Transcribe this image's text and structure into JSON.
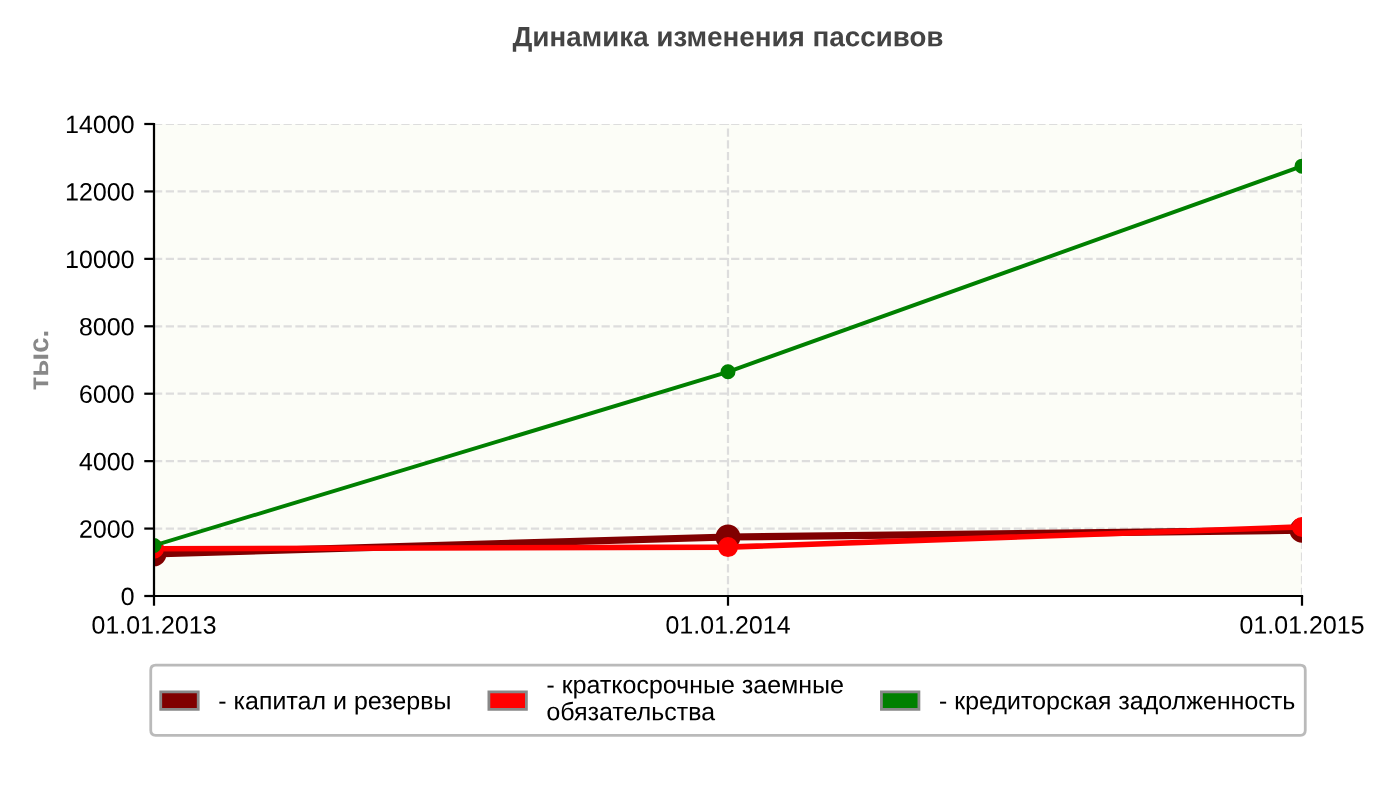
{
  "chart_data": {
    "type": "line",
    "title": "Динамика изменения пассивов",
    "ylabel": "тыс.",
    "categories": [
      "01.01.2013",
      "01.01.2014",
      "01.01.2015"
    ],
    "series": [
      {
        "name": "- капитал и резервы",
        "color": "#800000",
        "values": [
          1250,
          1750,
          1950
        ]
      },
      {
        "name": "- краткосрочные заемные\nобязательства",
        "color": "#ff0000",
        "values": [
          1400,
          1450,
          2050
        ]
      },
      {
        "name": "- кредиторская задолженность",
        "color": "#008000",
        "values": [
          1500,
          6650,
          12750
        ]
      }
    ],
    "ylim": [
      0,
      14000
    ],
    "yticks": [
      0,
      2000,
      4000,
      6000,
      8000,
      10000,
      12000,
      14000
    ],
    "grid": true,
    "legend": "bottom",
    "marker": "circle",
    "line_style": "solid"
  }
}
